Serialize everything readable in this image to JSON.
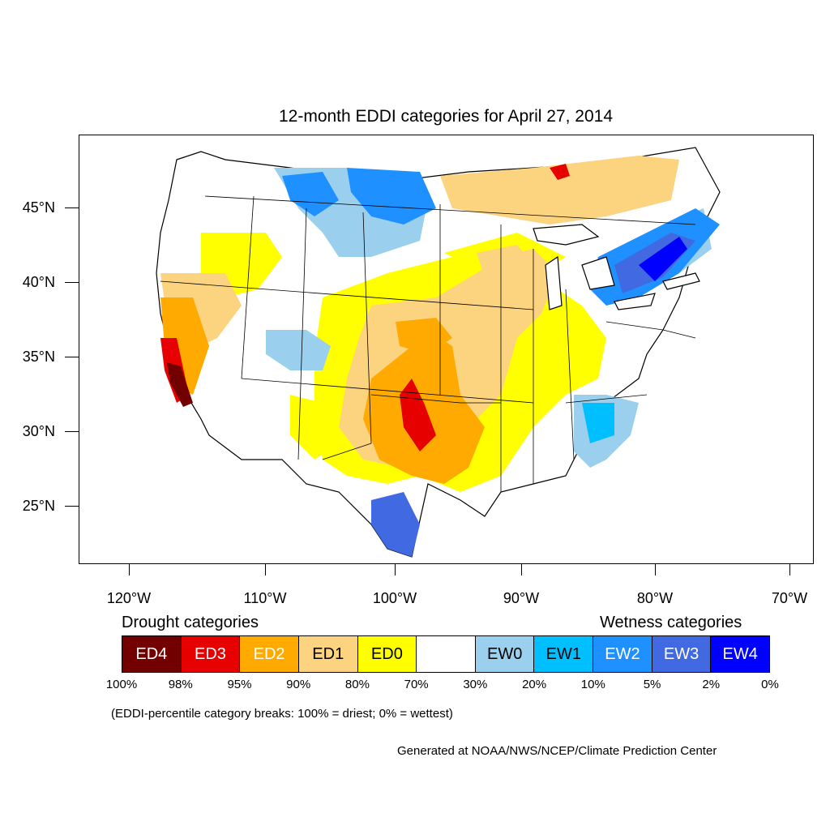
{
  "title": "12-month EDDI categories for April 27, 2014",
  "lat_labels": [
    "45°N",
    "40°N",
    "35°N",
    "30°N",
    "25°N"
  ],
  "lon_labels": [
    "120°W",
    "110°W",
    "100°W",
    "90°W",
    "80°W",
    "70°W"
  ],
  "legend": {
    "drought_heading": "Drought categories",
    "wetness_heading": "Wetness categories",
    "categories": [
      {
        "label": "ED4",
        "color": "#730000",
        "text_color": "#ffffff"
      },
      {
        "label": "ED3",
        "color": "#e60000",
        "text_color": "#ffffff"
      },
      {
        "label": "ED2",
        "color": "#ffaa00",
        "text_color": "#ffffff"
      },
      {
        "label": "ED1",
        "color": "#fcd37f",
        "text_color": "#000000"
      },
      {
        "label": "ED0",
        "color": "#ffff00",
        "text_color": "#000000"
      },
      {
        "label": "",
        "color": "#ffffff",
        "text_color": "#000000"
      },
      {
        "label": "EW0",
        "color": "#9bcfee",
        "text_color": "#000000"
      },
      {
        "label": "EW1",
        "color": "#00bfff",
        "text_color": "#000000"
      },
      {
        "label": "EW2",
        "color": "#1e90ff",
        "text_color": "#ffffff"
      },
      {
        "label": "EW3",
        "color": "#4169e1",
        "text_color": "#ffffff"
      },
      {
        "label": "EW4",
        "color": "#0000ff",
        "text_color": "#ffffff"
      }
    ],
    "breaks": [
      "100%",
      "98%",
      "95%",
      "90%",
      "80%",
      "70%",
      "30%",
      "20%",
      "10%",
      "5%",
      "2%",
      "0%"
    ]
  },
  "note": "(EDDI-percentile category breaks: 100% = driest; 0% = wettest)",
  "credit": "Generated at NOAA/NWS/NCEP/Climate Prediction Center"
}
